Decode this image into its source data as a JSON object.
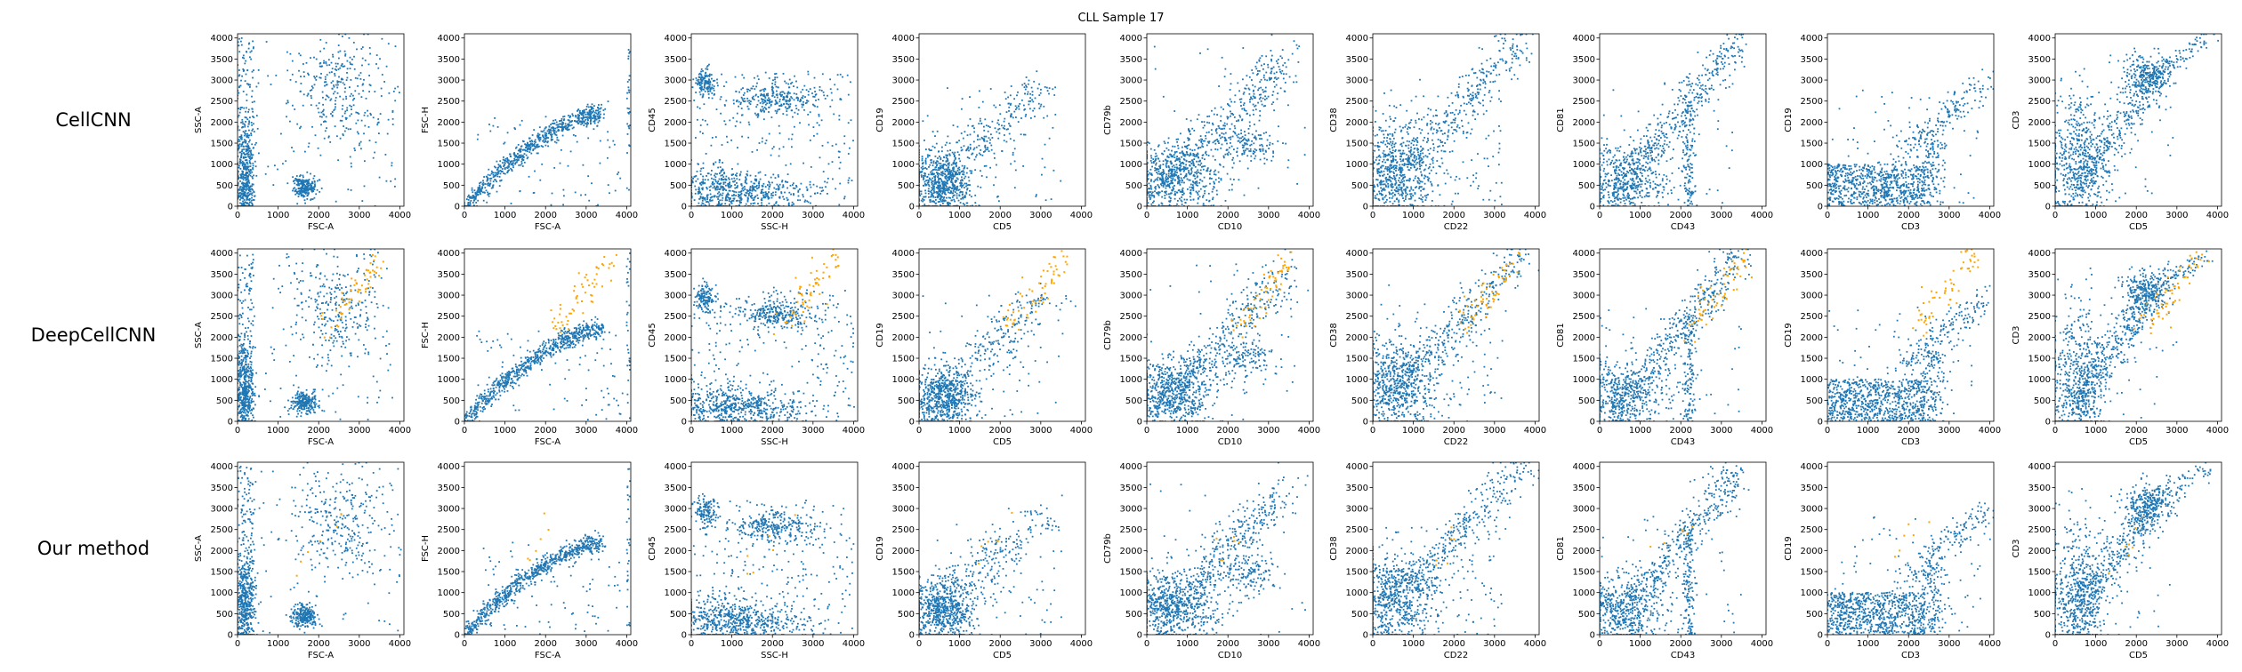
{
  "figure": {
    "title": "CLL Sample 17",
    "row_labels": [
      "CellCNN",
      "DeepCellCNN",
      "Our method"
    ]
  },
  "colors": {
    "primary": "#1f77b4",
    "highlight": "#ffa500",
    "axis": "#000000",
    "background": "#ffffff"
  },
  "chart_data": {
    "type": "scatter",
    "xlim": [
      0,
      4100
    ],
    "ylim": [
      0,
      4100
    ],
    "xticks": [
      0,
      1000,
      2000,
      3000,
      4000
    ],
    "yticks": [
      0,
      500,
      1000,
      1500,
      2000,
      2500,
      3000,
      3500,
      4000
    ],
    "grid": false,
    "legend": "none",
    "columns": [
      {
        "xlabel": "FSC-A",
        "ylabel": "SSC-A",
        "pattern": "fsc_ssc"
      },
      {
        "xlabel": "FSC-A",
        "ylabel": "FSC-H",
        "pattern": "fsc_fsch"
      },
      {
        "xlabel": "SSC-H",
        "ylabel": "CD45",
        "pattern": "ssc_cd45"
      },
      {
        "xlabel": "CD5",
        "ylabel": "CD19",
        "pattern": "cd5_cd19"
      },
      {
        "xlabel": "CD10",
        "ylabel": "CD79b",
        "pattern": "cd10_cd79b"
      },
      {
        "xlabel": "CD22",
        "ylabel": "CD38",
        "pattern": "cd22_cd38"
      },
      {
        "xlabel": "CD43",
        "ylabel": "CD81",
        "pattern": "cd43_cd81"
      },
      {
        "xlabel": "CD3",
        "ylabel": "CD19",
        "pattern": "cd3_cd19"
      },
      {
        "xlabel": "CD5",
        "ylabel": "CD3",
        "pattern": "cd5_cd3"
      }
    ],
    "rows": [
      {
        "name": "CellCNN",
        "highlighted_cells": []
      },
      {
        "name": "DeepCellCNN",
        "highlighted_cells": [
          {
            "region": "upper-right",
            "x": [
              2200,
              3600
            ],
            "y": [
              2200,
              3900
            ],
            "approx_count": 60
          }
        ]
      },
      {
        "name": "Our method",
        "highlighted_cells": [
          {
            "region": "sparse",
            "x": [
              1400,
              2400
            ],
            "y": [
              1600,
              2800
            ],
            "approx_count": 6
          }
        ]
      }
    ]
  }
}
